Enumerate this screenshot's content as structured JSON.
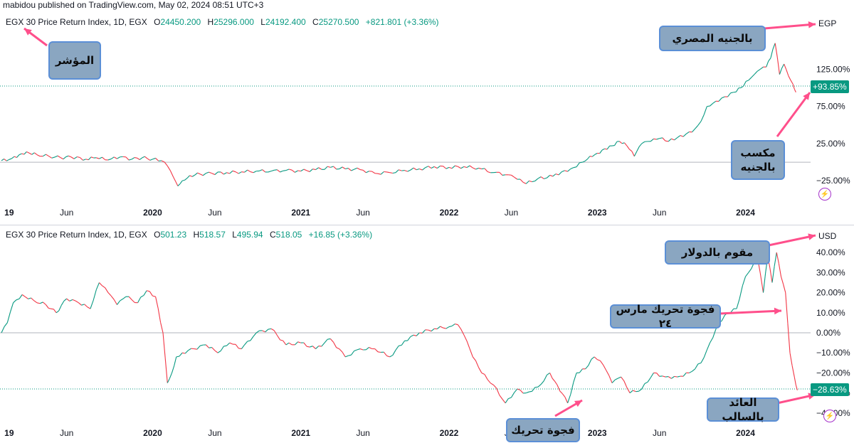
{
  "header": {
    "publisher_line": "mabidou published on TradingView.com, May 02, 2024 08:51 UTC+3"
  },
  "colors": {
    "up": "#089981",
    "down": "#f23645",
    "arrow": "#ff4f8b",
    "axis": "#131722",
    "callout_bg": "#8aa6c1",
    "callout_border": "#5b8fd6"
  },
  "chart_data": [
    {
      "type": "line",
      "title": "EGX 30 Price Return Index, 1D, EGX",
      "ohlc": {
        "O_label": "O",
        "O": "24450.200",
        "H_label": "H",
        "H": "25296.000",
        "L_label": "L",
        "L": "24192.400",
        "C_label": "C",
        "C": "25270.500",
        "change": "+821.801 (+3.36%)"
      },
      "currency": "EGP",
      "last_value_label": "+93.85%",
      "y_ticks": [
        "125.00%",
        "75.00%",
        "25.00%",
        "−25.00%"
      ],
      "y_tick_values": [
        125,
        75,
        25,
        -25
      ],
      "ylim": [
        -42,
        176
      ],
      "x_ticks": [
        "19",
        "Jun",
        "2020",
        "Jun",
        "2021",
        "Jun",
        "2022",
        "Jun",
        "2023",
        "Jun",
        "2024"
      ],
      "x_tick_bold": [
        true,
        false,
        true,
        false,
        true,
        false,
        true,
        false,
        true,
        false,
        true
      ],
      "x_tick_values": [
        2019.0,
        2019.42,
        2020.0,
        2020.42,
        2021.0,
        2021.42,
        2022.0,
        2022.42,
        2023.0,
        2023.42,
        2024.0
      ],
      "xlim": [
        2018.98,
        2024.42
      ],
      "series": [
        {
          "x": [
            2018.98,
            2019.05,
            2019.1,
            2019.15,
            2019.22,
            2019.3,
            2019.38,
            2019.45,
            2019.55,
            2019.62,
            2019.7,
            2019.78,
            2019.86,
            2019.93,
            2020.0,
            2020.06,
            2020.1,
            2020.14,
            2020.17,
            2020.2,
            2020.25,
            2020.32,
            2020.4,
            2020.5,
            2020.6,
            2020.7,
            2020.8,
            2020.9,
            2021.0,
            2021.1,
            2021.2,
            2021.3,
            2021.4,
            2021.5,
            2021.6,
            2021.7,
            2021.8,
            2021.9,
            2022.0,
            2022.1,
            2022.2,
            2022.3,
            2022.4,
            2022.46,
            2022.52,
            2022.6,
            2022.7,
            2022.76,
            2022.82,
            2022.9,
            2022.95,
            2023.0,
            2023.05,
            2023.1,
            2023.15,
            2023.2,
            2023.25,
            2023.3,
            2023.36,
            2023.42,
            2023.48,
            2023.54,
            2023.6,
            2023.66,
            2023.7,
            2023.74,
            2023.8,
            2023.86,
            2023.92,
            2023.97,
            2024.02,
            2024.06,
            2024.1,
            2024.14,
            2024.17,
            2024.2,
            2024.23,
            2024.26,
            2024.29,
            2024.32,
            2024.34
          ],
          "values": [
            2,
            5,
            10,
            14,
            10,
            8,
            6,
            7,
            4,
            6,
            3,
            7,
            4,
            6,
            4,
            2,
            -5,
            -20,
            -32,
            -25,
            -18,
            -16,
            -15,
            -14,
            -13,
            -12,
            -12,
            -11,
            -12,
            -10,
            -7,
            -9,
            -10,
            -15,
            -14,
            -11,
            -9,
            -6,
            -7,
            -6,
            -8,
            -14,
            -17,
            -23,
            -29,
            -22,
            -19,
            -13,
            -9,
            0,
            8,
            12,
            18,
            22,
            28,
            22,
            8,
            25,
            28,
            32,
            28,
            33,
            38,
            45,
            55,
            75,
            82,
            88,
            94,
            100,
            110,
            118,
            125,
            128,
            140,
            160,
            118,
            132,
            116,
            105,
            94
          ]
        }
      ],
      "callouts": [
        {
          "text": "المؤشر"
        },
        {
          "text": "بالجنيه المصري"
        },
        {
          "text": "مكسب بالجنيه"
        }
      ]
    },
    {
      "type": "line",
      "title": "EGX 30 Price Return Index, 1D, EGX",
      "ohlc": {
        "O_label": "O",
        "O": "501.23",
        "H_label": "H",
        "H": "518.57",
        "L_label": "L",
        "L": "495.94",
        "C_label": "C",
        "C": "518.05",
        "change": "+16.85 (+3.36%)"
      },
      "currency": "USD",
      "last_value_label": "−28.63%",
      "y_ticks": [
        "40.00%",
        "30.00%",
        "20.00%",
        "10.00%",
        "0.00%",
        "−10.00%",
        "−20.00%",
        "−30.00%",
        "−40.00%"
      ],
      "y_tick_values": [
        40,
        30,
        20,
        10,
        0,
        -10,
        -20,
        -30,
        -40
      ],
      "ylim": [
        -45,
        45
      ],
      "x_ticks": [
        "19",
        "Jun",
        "2020",
        "Jun",
        "2021",
        "Jun",
        "2022",
        "Jun",
        "2023",
        "Jun",
        "2024"
      ],
      "x_tick_bold": [
        true,
        false,
        true,
        false,
        true,
        false,
        true,
        false,
        true,
        false,
        true
      ],
      "x_tick_values": [
        2019.0,
        2019.42,
        2020.0,
        2020.42,
        2021.0,
        2021.42,
        2022.0,
        2022.42,
        2023.0,
        2023.42,
        2024.0
      ],
      "xlim": [
        2018.98,
        2024.42
      ],
      "series": [
        {
          "x": [
            2018.98,
            2019.02,
            2019.06,
            2019.12,
            2019.2,
            2019.28,
            2019.35,
            2019.42,
            2019.5,
            2019.58,
            2019.64,
            2019.7,
            2019.76,
            2019.82,
            2019.9,
            2019.96,
            2020.02,
            2020.07,
            2020.1,
            2020.13,
            2020.16,
            2020.2,
            2020.28,
            2020.36,
            2020.44,
            2020.52,
            2020.6,
            2020.7,
            2020.8,
            2020.9,
            2021.0,
            2021.1,
            2021.2,
            2021.3,
            2021.4,
            2021.5,
            2021.6,
            2021.7,
            2021.8,
            2021.9,
            2022.0,
            2022.06,
            2022.1,
            2022.16,
            2022.22,
            2022.3,
            2022.38,
            2022.46,
            2022.52,
            2022.6,
            2022.68,
            2022.73,
            2022.8,
            2022.86,
            2022.92,
            2022.98,
            2023.04,
            2023.1,
            2023.16,
            2023.22,
            2023.3,
            2023.38,
            2023.46,
            2023.54,
            2023.62,
            2023.7,
            2023.76,
            2023.82,
            2023.88,
            2023.94,
            2024.0,
            2024.04,
            2024.08,
            2024.12,
            2024.15,
            2024.18,
            2024.21,
            2024.24,
            2024.27,
            2024.3,
            2024.33,
            2024.35
          ],
          "values": [
            0,
            5,
            15,
            19,
            16,
            14,
            10,
            17,
            15,
            12,
            25,
            20,
            14,
            18,
            15,
            21,
            18,
            0,
            -25,
            -20,
            -12,
            -10,
            -8,
            -6,
            -10,
            -5,
            -8,
            0,
            2,
            -6,
            -5,
            -8,
            -3,
            -12,
            -8,
            -8,
            -12,
            -4,
            0,
            2,
            3,
            4,
            -1,
            -12,
            -20,
            -26,
            -35,
            -28,
            -30,
            -27,
            -20,
            -26,
            -35,
            -20,
            -18,
            -12,
            -16,
            -25,
            -22,
            -30,
            -28,
            -20,
            -22,
            -22,
            -20,
            -15,
            -5,
            5,
            10,
            12,
            28,
            32,
            38,
            20,
            38,
            25,
            40,
            28,
            20,
            -10,
            -22,
            -28.63
          ]
        }
      ],
      "callouts": [
        {
          "text": "مقوم بالدولار"
        },
        {
          "text": "فجوة تحريك مارس ٢٤"
        },
        {
          "text": "فجوة تحريك"
        },
        {
          "text": "العائد بالسالب"
        }
      ]
    }
  ]
}
